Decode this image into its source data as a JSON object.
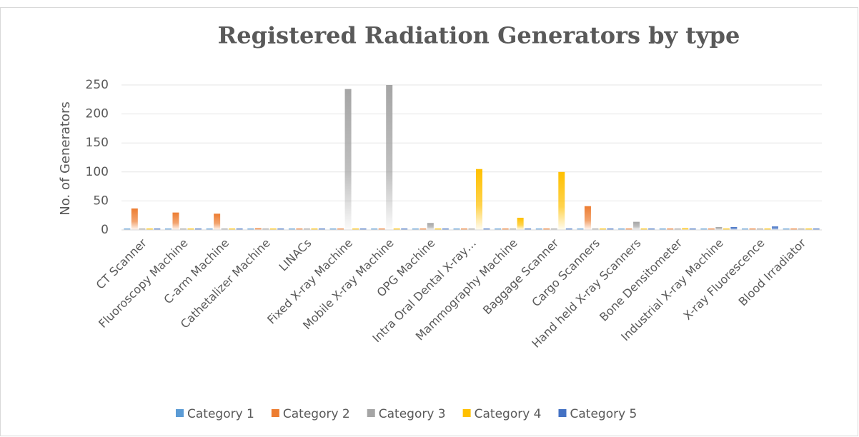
{
  "chart_data": {
    "type": "bar",
    "title": "Registered Radiation Generators by type",
    "y_label": "No. of Generators",
    "categories": [
      "CT Scanner",
      "Fluoroscopy Machine",
      "C-arm Machine",
      "Cathetalizer Machine",
      "LINACs",
      "Fixed X-ray Machine",
      "Mobile X-ray Machine",
      "OPG Machine",
      "Intra Oral Dental X-ray…",
      "Mammography Machine",
      "Baggage Scanner",
      "Cargo Scanners",
      "Hand held X-ray Scanners",
      "Bone Densitometer",
      "Industrial X-ray Machine",
      "X-ray Fluorescence",
      "Blood Irradiator"
    ],
    "series": [
      {
        "name": "Category 1",
        "color": "#5b9bd5",
        "values": [
          0,
          0,
          0,
          0,
          0,
          0,
          0,
          0,
          0,
          0,
          0,
          0,
          0,
          0,
          0,
          0,
          0
        ]
      },
      {
        "name": "Category 2",
        "color": "#ed7d31",
        "values": [
          37,
          30,
          28,
          3,
          1,
          0,
          0,
          0,
          0,
          0,
          0,
          41,
          0,
          0,
          0,
          0,
          1
        ]
      },
      {
        "name": "Category 3",
        "color": "#a5a5a5",
        "values": [
          0,
          0,
          0,
          0,
          0,
          243,
          250,
          12,
          0,
          0,
          0,
          0,
          14,
          0,
          5,
          0,
          0
        ]
      },
      {
        "name": "Category 4",
        "color": "#ffc000",
        "values": [
          0,
          0,
          0,
          0,
          0,
          0,
          0,
          0,
          105,
          21,
          100,
          0,
          0,
          3,
          0,
          0,
          0
        ]
      },
      {
        "name": "Category 5",
        "color": "#4472c4",
        "values": [
          0,
          0,
          0,
          0,
          0,
          0,
          0,
          0,
          0,
          0,
          0,
          0,
          0,
          0,
          5,
          6,
          0
        ]
      }
    ],
    "ylim": [
      0,
      250
    ],
    "yticks": [
      0,
      50,
      100,
      150,
      200,
      250
    ],
    "grid": true,
    "legend": "bottom"
  }
}
